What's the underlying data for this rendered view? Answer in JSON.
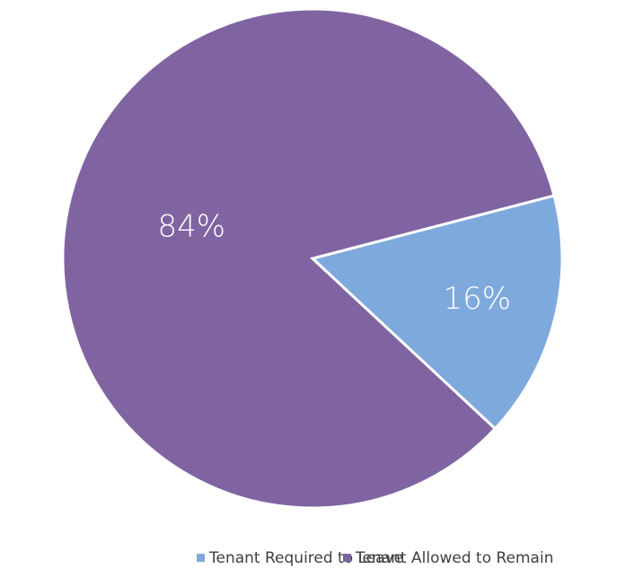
{
  "chart_data": {
    "type": "pie",
    "categories": [
      "Tenant Required to Leave",
      "Tenant Allowed to Remain"
    ],
    "values": [
      16,
      84
    ],
    "value_labels": [
      "16%",
      "84%"
    ],
    "colors": [
      "#7ea9dc",
      "#8064a2"
    ],
    "legend": "bottom"
  }
}
